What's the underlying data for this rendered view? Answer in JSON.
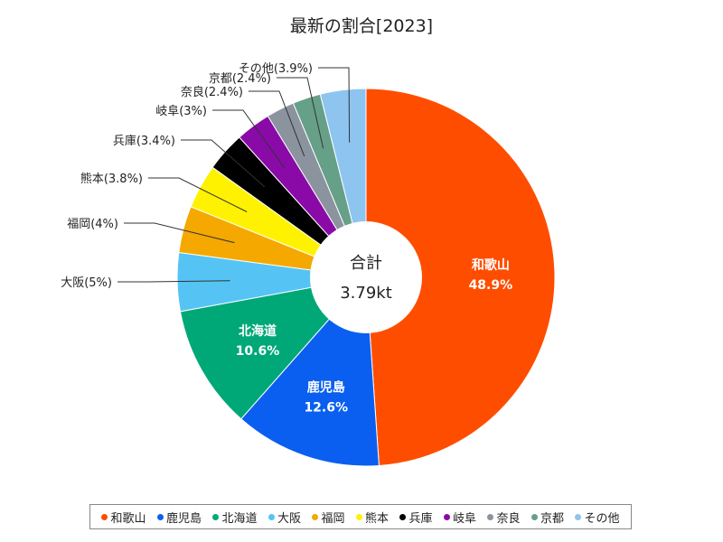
{
  "chart_data": {
    "type": "pie",
    "title": "最新の割合[2023]",
    "center_label": "合計",
    "center_value": "3.79kt",
    "slices": [
      {
        "name": "和歌山",
        "value": 48.9,
        "label": "48.9%",
        "color": "#ff4d00",
        "label_position": "inside"
      },
      {
        "name": "鹿児島",
        "value": 12.6,
        "label": "12.6%",
        "color": "#0a5ff0",
        "label_position": "inside"
      },
      {
        "name": "北海道",
        "value": 10.6,
        "label": "10.6%",
        "color": "#00a878",
        "label_position": "inside"
      },
      {
        "name": "大阪",
        "value": 5,
        "label": "大阪(5%)",
        "color": "#55c4f5",
        "label_position": "outside"
      },
      {
        "name": "福岡",
        "value": 4,
        "label": "福岡(4%)",
        "color": "#f5a800",
        "label_position": "outside"
      },
      {
        "name": "熊本",
        "value": 3.8,
        "label": "熊本(3.8%)",
        "color": "#fff200",
        "label_position": "outside"
      },
      {
        "name": "兵庫",
        "value": 3.4,
        "label": "兵庫(3.4%)",
        "color": "#000000",
        "label_position": "outside"
      },
      {
        "name": "岐阜",
        "value": 3,
        "label": "岐阜(3%)",
        "color": "#8a0aa8",
        "label_position": "outside"
      },
      {
        "name": "奈良",
        "value": 2.4,
        "label": "奈良(2.4%)",
        "color": "#8a939e",
        "label_position": "outside"
      },
      {
        "name": "京都",
        "value": 2.4,
        "label": "京都(2.4%)",
        "color": "#66a088",
        "label_position": "outside"
      },
      {
        "name": "その他",
        "value": 3.9,
        "label": "その他(3.9%)",
        "color": "#8ec4f0",
        "label_position": "outside"
      }
    ],
    "legend": [
      "和歌山",
      "鹿児島",
      "北海道",
      "大阪",
      "福岡",
      "熊本",
      "兵庫",
      "岐阜",
      "奈良",
      "京都",
      "その他"
    ],
    "legend_position": "bottom"
  }
}
